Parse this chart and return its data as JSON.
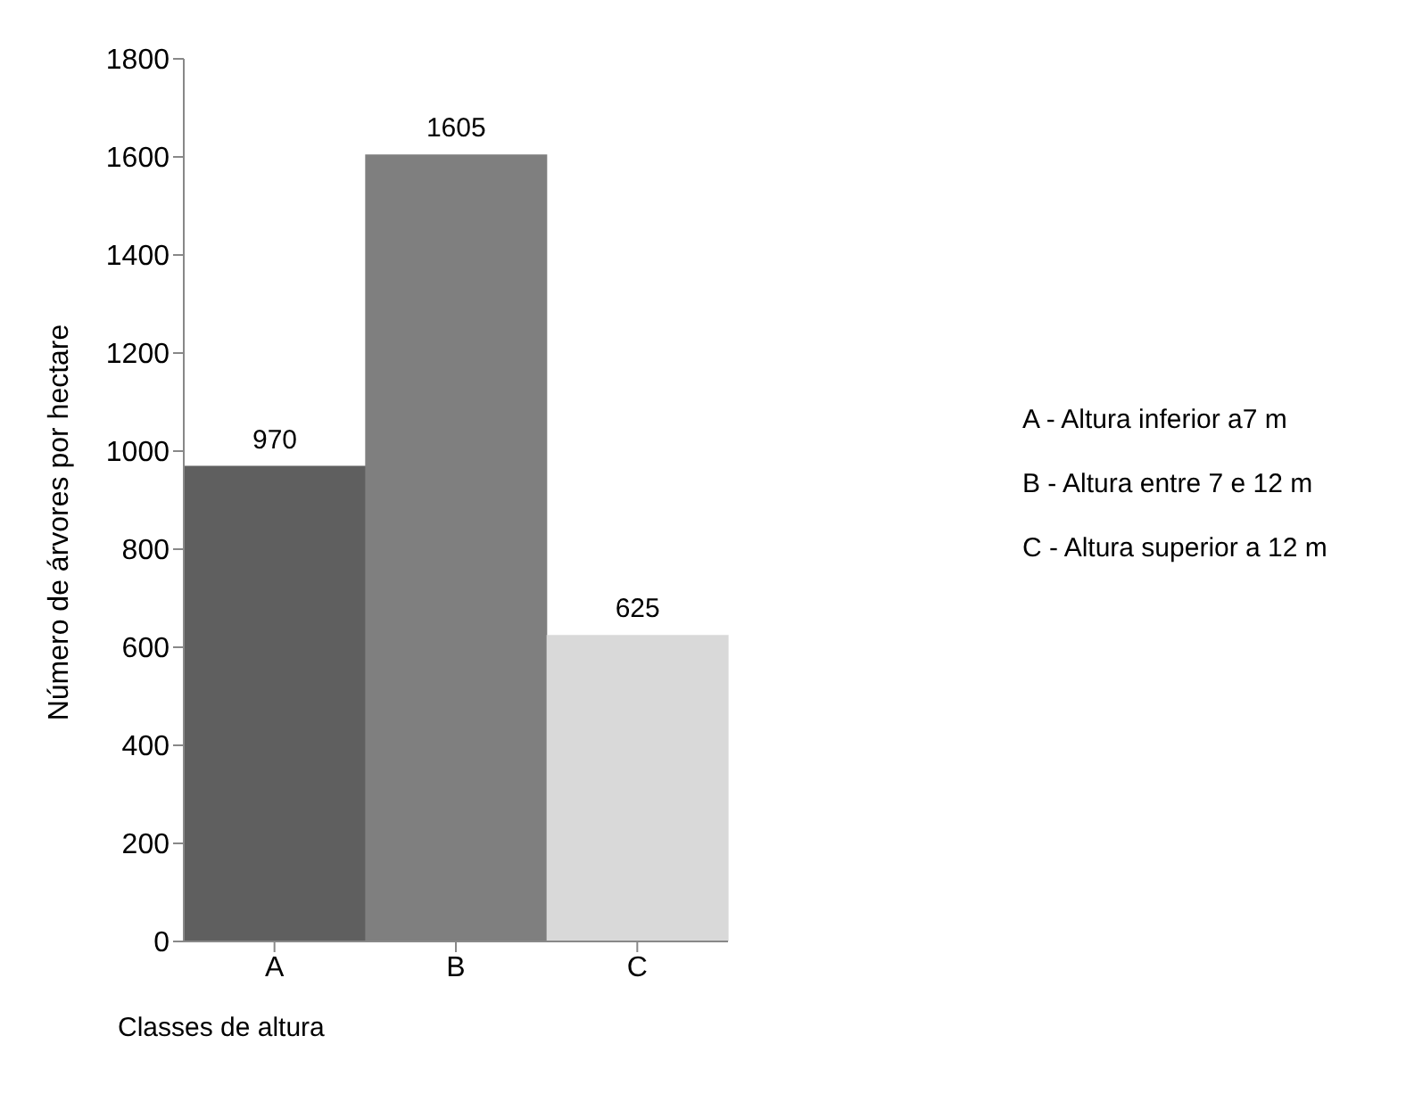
{
  "chart_data": {
    "type": "bar",
    "xlabel": "Classes de altura",
    "ylabel": "Número de árvores por hectare",
    "categories": [
      "A",
      "B",
      "C"
    ],
    "values": [
      970,
      1605,
      625
    ],
    "colors": [
      "#5f5f5f",
      "#7f7f7f",
      "#d9d9d9"
    ],
    "ylim": [
      0,
      1800
    ],
    "yticks": [
      0,
      200,
      400,
      600,
      800,
      1000,
      1200,
      1400,
      1600,
      1800
    ],
    "grid": false,
    "data_labels": true,
    "legend": false,
    "annotations": [
      "A - Altura inferior a7 m",
      "B - Altura entre 7 e 12 m",
      "C - Altura superior a 12 m"
    ]
  }
}
